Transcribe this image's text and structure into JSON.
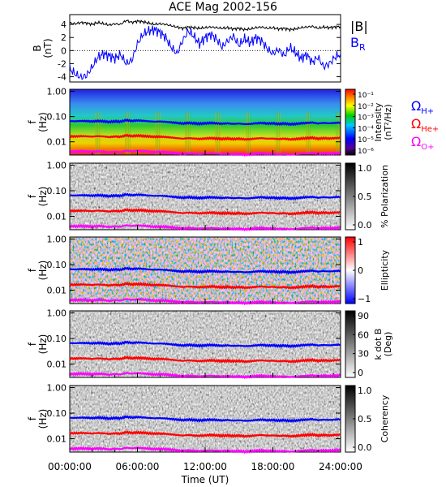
{
  "title": "ACE Mag 2002-156",
  "xlabel": "Time (UT)",
  "x_ticks": [
    "00:00:00",
    "06:00:00",
    "12:00:00",
    "18:00:00",
    "24:00:00"
  ],
  "chart_data": {
    "type": "line_and_heatmap",
    "title": "ACE Mag 2002-156",
    "x_hours": [
      0,
      0.5,
      1,
      1.5,
      2,
      2.5,
      3,
      3.5,
      4,
      4.5,
      5,
      5.5,
      6,
      6.5,
      7,
      7.5,
      8,
      8.5,
      9,
      9.5,
      10,
      10.5,
      11,
      11.5,
      12,
      12.5,
      13,
      13.5,
      14,
      14.5,
      15,
      15.5,
      16,
      16.5,
      17,
      17.5,
      18,
      18.5,
      19,
      19.5,
      20,
      20.5,
      21,
      21.5,
      22,
      22.5,
      23,
      23.5,
      24
    ],
    "b_panel": {
      "ylabel": "B\n(nT)",
      "ylim": [
        -4.8,
        5.5
      ],
      "yticks": [
        "4",
        "2",
        "0",
        "-2",
        "-4"
      ],
      "ytick_values": [
        4,
        2,
        0,
        -2,
        -4
      ],
      "series": [
        {
          "name": "|B|",
          "color": "#000000",
          "values": [
            4.2,
            4.1,
            4.3,
            4.2,
            4.0,
            4.3,
            4.1,
            3.9,
            4.1,
            4.0,
            4.6,
            4.3,
            4.5,
            4.4,
            4.2,
            4.0,
            4.1,
            4.0,
            3.8,
            3.6,
            3.4,
            3.6,
            3.5,
            3.4,
            3.5,
            3.6,
            3.5,
            3.4,
            3.5,
            3.3,
            3.4,
            3.2,
            3.3,
            3.5,
            3.6,
            3.4,
            3.5,
            3.3,
            3.4,
            3.2,
            3.3,
            3.5,
            3.6,
            3.7,
            3.4,
            3.6,
            3.5,
            3.6,
            3.7
          ]
        },
        {
          "name": "B_R",
          "color": "#0000ff",
          "values": [
            -2.8,
            -3.6,
            -4.1,
            -3.8,
            -2.5,
            -1.0,
            -0.5,
            -0.8,
            -1.2,
            -0.6,
            -2.0,
            -1.5,
            1.0,
            2.5,
            3.0,
            3.2,
            2.8,
            2.0,
            0.5,
            -0.5,
            1.5,
            3.0,
            2.2,
            1.0,
            2.0,
            2.5,
            1.8,
            0.5,
            1.5,
            2.2,
            0.8,
            1.8,
            1.2,
            2.0,
            1.5,
            0.3,
            -0.5,
            0.2,
            -0.8,
            0.5,
            -0.3,
            -1.2,
            -0.6,
            -1.8,
            -1.0,
            -2.5,
            -2.0,
            -1.0,
            -0.5
          ]
        }
      ]
    },
    "spectrogram_panels": [
      {
        "ylabel": "f\n(Hz)",
        "colorbar": "rainbow",
        "colorbar_label": "Intensity\n(nT²/Hz)",
        "colorbar_ticks": [
          "10⁻¹",
          "10⁻²",
          "10⁻³",
          "10⁻⁴",
          "10⁻⁵",
          "10⁻⁶"
        ]
      },
      {
        "ylabel": "f\n(Hz)",
        "colorbar": "gray",
        "colorbar_label": "% Polarization",
        "colorbar_ticks": [
          "1.0",
          "0.5",
          "0.0"
        ]
      },
      {
        "ylabel": "f\n(Hz)",
        "colorbar": "bwr",
        "colorbar_label": "Ellipticity",
        "colorbar_ticks": [
          "1",
          "0",
          "−1"
        ]
      },
      {
        "ylabel": "f\n(Hz)",
        "colorbar": "gray",
        "colorbar_label": "k dot B\n(Deg)",
        "colorbar_ticks": [
          "90",
          "60",
          "30",
          "0"
        ]
      },
      {
        "ylabel": "f\n(Hz)",
        "colorbar": "gray",
        "colorbar_label": "Coherency",
        "colorbar_ticks": [
          "1.0",
          "0.5",
          "0.0"
        ]
      }
    ],
    "freq_axis": {
      "scale": "log",
      "ylim": [
        0.003,
        1.2
      ],
      "yticks": [
        "1.00",
        "0.10",
        "0.01"
      ],
      "ytick_values": [
        1.0,
        0.1,
        0.01
      ]
    },
    "gyrofrequency_lines": [
      {
        "name": "ΩH+",
        "color": "#0000ff",
        "values": [
          0.066,
          0.065,
          0.067,
          0.066,
          0.064,
          0.067,
          0.065,
          0.061,
          0.065,
          0.063,
          0.072,
          0.067,
          0.07,
          0.068,
          0.065,
          0.063,
          0.064,
          0.062,
          0.059,
          0.056,
          0.053,
          0.056,
          0.054,
          0.052,
          0.054,
          0.056,
          0.054,
          0.052,
          0.054,
          0.051,
          0.053,
          0.05,
          0.051,
          0.054,
          0.056,
          0.053,
          0.054,
          0.051,
          0.053,
          0.05,
          0.051,
          0.054,
          0.056,
          0.058,
          0.053,
          0.056,
          0.054,
          0.056,
          0.058
        ]
      },
      {
        "name": "ΩHe+",
        "color": "#ff0000",
        "values": [
          0.0165,
          0.0163,
          0.0168,
          0.0165,
          0.016,
          0.0168,
          0.0163,
          0.0153,
          0.0163,
          0.0158,
          0.018,
          0.0168,
          0.0175,
          0.017,
          0.0163,
          0.0158,
          0.016,
          0.0155,
          0.0148,
          0.014,
          0.0133,
          0.014,
          0.0135,
          0.013,
          0.0135,
          0.014,
          0.0135,
          0.013,
          0.0135,
          0.0128,
          0.0133,
          0.0125,
          0.0128,
          0.0135,
          0.014,
          0.0133,
          0.0135,
          0.0128,
          0.0133,
          0.0125,
          0.0128,
          0.0135,
          0.014,
          0.0145,
          0.0133,
          0.014,
          0.0135,
          0.014,
          0.0145
        ]
      },
      {
        "name": "ΩO+",
        "color": "#ff00ff",
        "values": [
          0.0041,
          0.0041,
          0.0042,
          0.0041,
          0.004,
          0.0042,
          0.0041,
          0.0038,
          0.0041,
          0.0039,
          0.0045,
          0.0042,
          0.0044,
          0.0043,
          0.0041,
          0.0039,
          0.004,
          0.0039,
          0.0037,
          0.0035,
          0.0033,
          0.0035,
          0.0034,
          0.0033,
          0.0034,
          0.0035,
          0.0034,
          0.0033,
          0.0034,
          0.0032,
          0.0033,
          0.0031,
          0.0032,
          0.0034,
          0.0035,
          0.0033,
          0.0034,
          0.0032,
          0.0033,
          0.0031,
          0.0032,
          0.0034,
          0.0035,
          0.0036,
          0.0033,
          0.0035,
          0.0034,
          0.0035,
          0.0036
        ]
      }
    ],
    "legend": [
      {
        "text": "|B|",
        "color": "#000000"
      },
      {
        "text": "B",
        "sub": "R",
        "color": "#0000ff"
      },
      {
        "text": "Ω",
        "sub": "H+",
        "color": "#0000ff"
      },
      {
        "text": "Ω",
        "sub": "He+",
        "color": "#ff0000"
      },
      {
        "text": "Ω",
        "sub": "O+",
        "color": "#ff00ff"
      }
    ]
  }
}
